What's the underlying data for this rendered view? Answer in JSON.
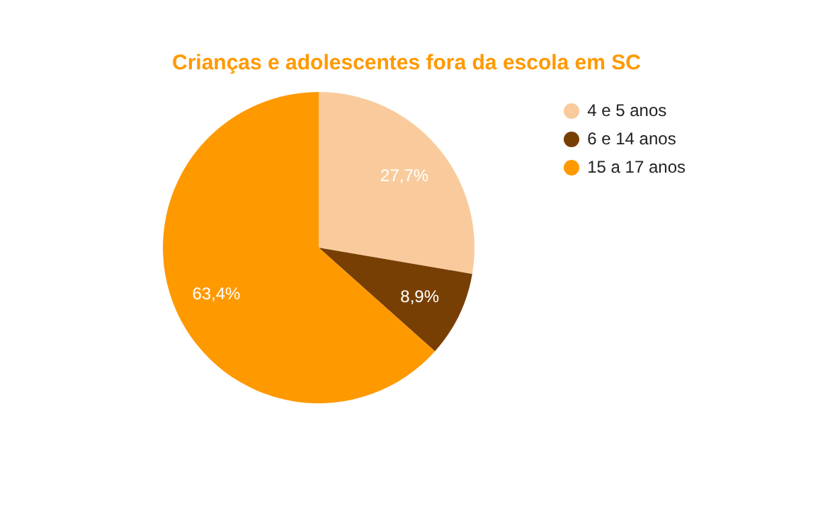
{
  "chart_data": {
    "type": "pie",
    "title": "Crianças e adolescentes fora da escola em SC",
    "categories": [
      "4 e 5 anos",
      "6 e 14 anos",
      "15 a 17 anos"
    ],
    "values": [
      27.7,
      8.9,
      63.4
    ],
    "colors": [
      "#f9cb9c",
      "#783f04",
      "#ff9900"
    ],
    "value_labels": [
      "27,7%",
      "8,9%",
      "63,4%"
    ],
    "legend": "top right"
  }
}
